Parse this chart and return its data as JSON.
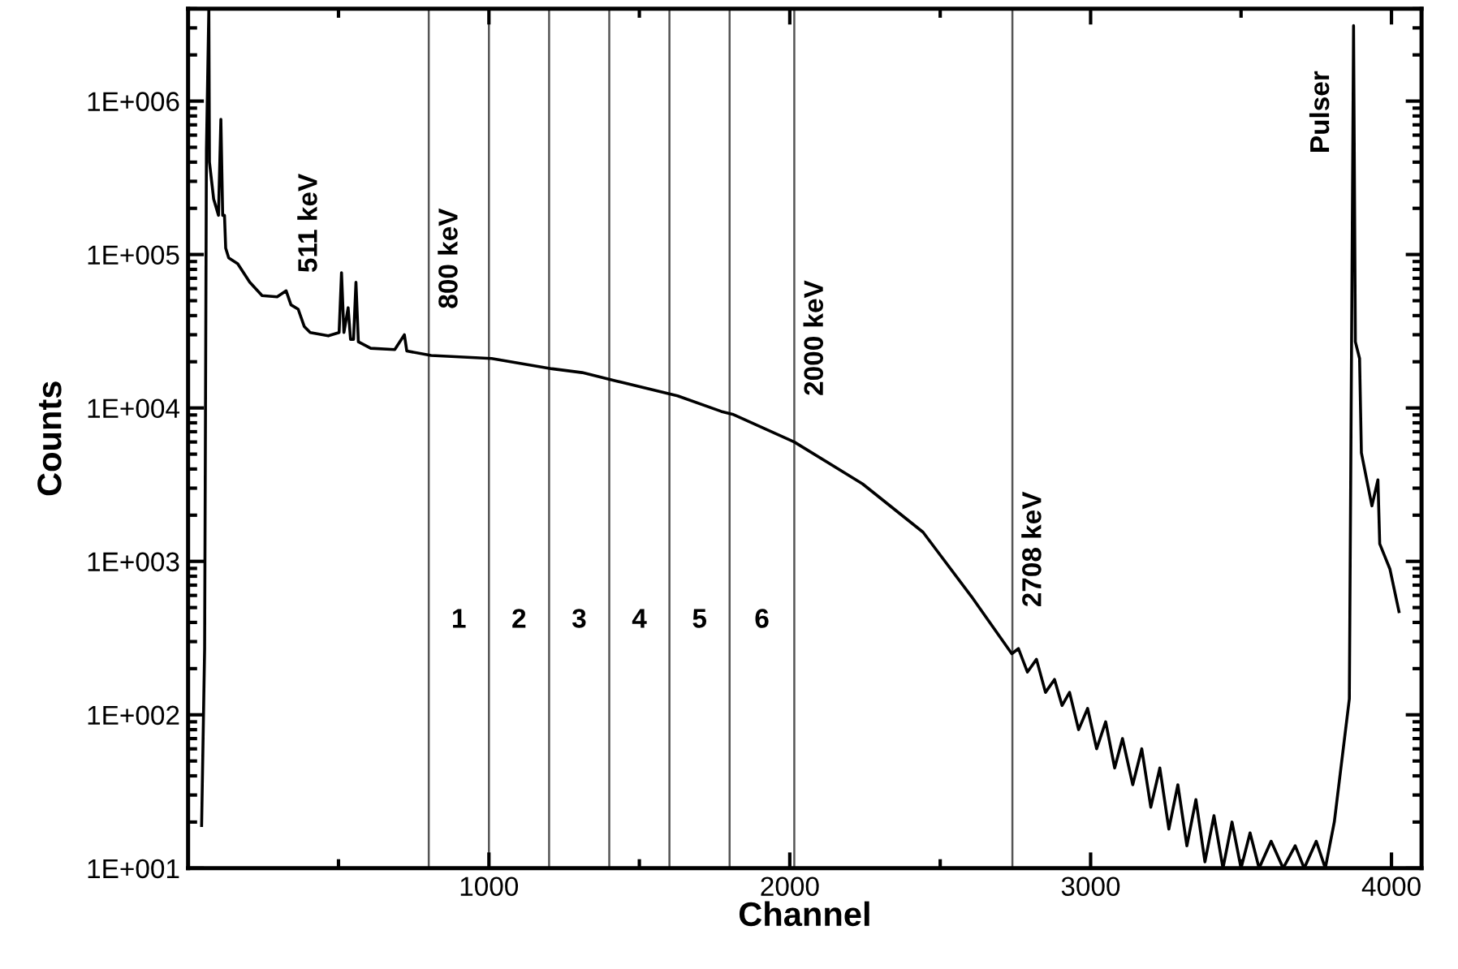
{
  "chart_data": {
    "type": "line",
    "xlabel": "Channel",
    "ylabel": "Counts",
    "log": "y",
    "grid": false,
    "legend": false,
    "marker": "none",
    "line_style": "solid",
    "xlim": [
      0,
      4100
    ],
    "xticks": [
      {
        "value": 500,
        "label": null
      },
      1000,
      {
        "value": 1500,
        "label": null
      },
      2000,
      {
        "value": 2500,
        "label": null
      },
      3000,
      {
        "value": 3500,
        "label": null
      },
      4000
    ],
    "ylim": [
      10,
      4000000
    ],
    "yticks": [
      {
        "value": 10,
        "label": "1E+001"
      },
      {
        "value": 100,
        "label": "1E+002"
      },
      {
        "value": 1000,
        "label": "1E+003"
      },
      {
        "value": 10000,
        "label": "1E+004"
      },
      {
        "value": 100000,
        "label": "1E+005"
      },
      {
        "value": 1000000,
        "label": "1E+006"
      }
    ],
    "series": [
      {
        "color": "#000000",
        "x": [
          45,
          55,
          61,
          69,
          71,
          85,
          101,
          109,
          115,
          121,
          125,
          135,
          165,
          205,
          246,
          296,
          326,
          342,
          366,
          386,
          406,
          466,
          502,
          510,
          518,
          532,
          540,
          550,
          558,
          566,
          607,
          687,
          719,
          727,
          808,
          1009,
          1210,
          1310,
          1423,
          1627,
          1772,
          1810,
          2015,
          2242,
          2443,
          2604,
          2738,
          2760,
          2790,
          2820,
          2850,
          2880,
          2905,
          2930,
          2960,
          2990,
          3020,
          3050,
          3080,
          3106,
          3140,
          3170,
          3200,
          3230,
          3260,
          3290,
          3320,
          3350,
          3380,
          3410,
          3440,
          3470,
          3500,
          3530,
          3560,
          3600,
          3640,
          3680,
          3710,
          3750,
          3780,
          3810,
          3860,
          3874,
          3880,
          3894,
          3900,
          3935,
          3955,
          3961,
          3995,
          4025
        ],
        "values": [
          19,
          270,
          480000,
          4000000,
          400000,
          230000,
          180000,
          760000,
          180000,
          180000,
          110000,
          95000,
          87000,
          66000,
          54000,
          53000,
          58000,
          47000,
          44000,
          34000,
          31000,
          29500,
          31000,
          76000,
          31000,
          45000,
          28000,
          28000,
          66000,
          27000,
          24500,
          24000,
          30000,
          23500,
          22000,
          21000,
          18000,
          17000,
          15000,
          12000,
          9500,
          9100,
          6000,
          3200,
          1550,
          590,
          250,
          270,
          190,
          230,
          140,
          170,
          115,
          140,
          80,
          110,
          60,
          90,
          45,
          70,
          35,
          60,
          25,
          45,
          18,
          35,
          14,
          28,
          11,
          22,
          10,
          20,
          10,
          17,
          10,
          15,
          10,
          14,
          10,
          15,
          10,
          20,
          127,
          3100000,
          27000,
          21000,
          5100,
          2300,
          3400,
          1300,
          890,
          470
        ]
      }
    ],
    "ref_lines": [
      {
        "axis": "x",
        "value": 800,
        "color": "#555555",
        "label": "800 keV"
      },
      {
        "axis": "x",
        "value": 1000,
        "color": "#555555"
      },
      {
        "axis": "x",
        "value": 1200,
        "color": "#555555"
      },
      {
        "axis": "x",
        "value": 1400,
        "color": "#555555"
      },
      {
        "axis": "x",
        "value": 1600,
        "color": "#555555"
      },
      {
        "axis": "x",
        "value": 1800,
        "color": "#555555"
      },
      {
        "axis": "x",
        "value": 2015,
        "color": "#555555",
        "label": "2000 keV"
      },
      {
        "axis": "x",
        "value": 2740,
        "color": "#555555",
        "label": "2708 keV"
      }
    ],
    "annotations": [
      "1",
      "2",
      "3",
      "4",
      "5",
      "6",
      {
        "text": "511 keV",
        "x": 510,
        "y": 76000
      },
      {
        "text": "Pulser",
        "x": 3874,
        "y": 3100000
      }
    ]
  }
}
